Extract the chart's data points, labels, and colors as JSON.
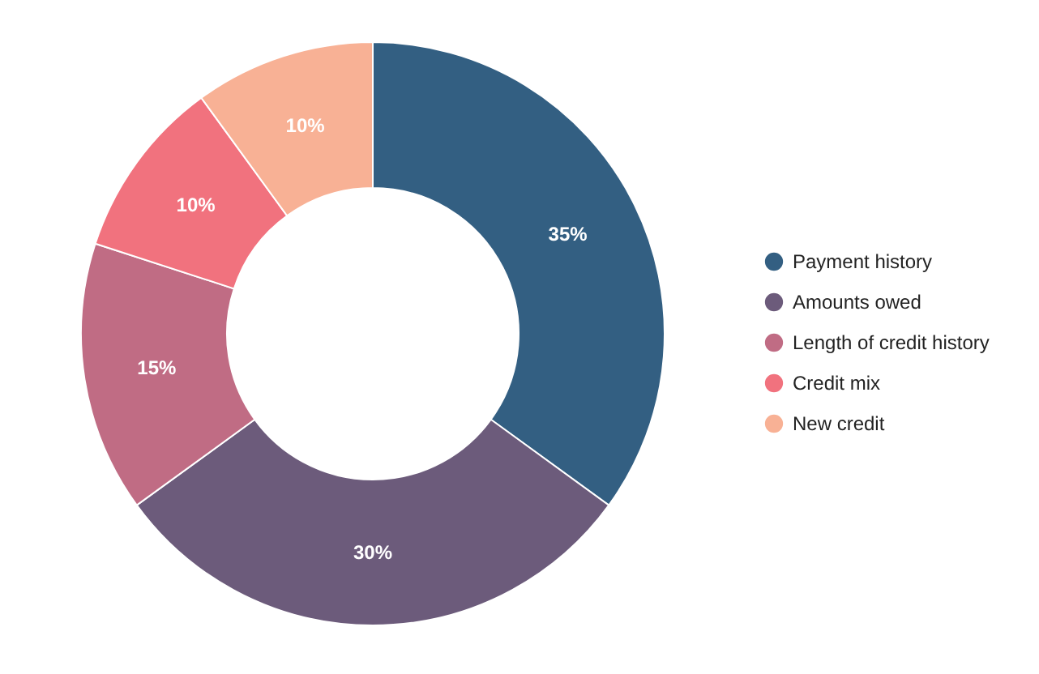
{
  "chart_data": {
    "type": "donut",
    "categories": [
      "Payment history",
      "Amounts owed",
      "Length of credit history",
      "Credit mix",
      "New credit"
    ],
    "values": [
      35,
      30,
      15,
      10,
      10
    ],
    "colors": [
      "#335f82",
      "#6c5b7b",
      "#c06c84",
      "#f1727e",
      "#f8b195"
    ],
    "value_labels": [
      "35%",
      "30%",
      "15%",
      "10%",
      "10%"
    ],
    "legend": "right"
  }
}
